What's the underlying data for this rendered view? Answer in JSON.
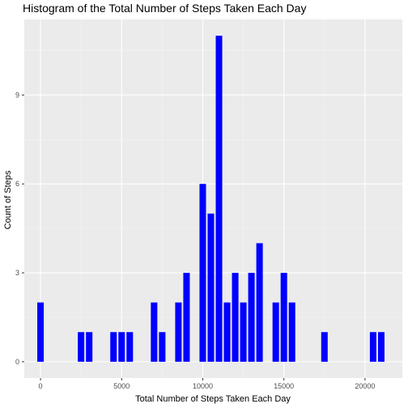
{
  "chart_data": {
    "type": "bar",
    "title": "Histogram of the Total Number of Steps Taken Each Day",
    "xlabel": "Total Number of Steps Taken Each Day",
    "ylabel": "Count of Steps",
    "xlim": [
      -1000,
      22300
    ],
    "ylim": [
      -0.55,
      11.55
    ],
    "binwidth": 500,
    "x_ticks": [
      0,
      5000,
      10000,
      15000,
      20000
    ],
    "x_tick_labels": [
      "0",
      "5000",
      "10000",
      "15000",
      "20000"
    ],
    "y_ticks": [
      0,
      3,
      6,
      9
    ],
    "y_tick_labels": [
      "0",
      "3",
      "6",
      "9"
    ],
    "grid": true,
    "bar_color": "#0000ff",
    "bins": [
      {
        "x": 0,
        "count": 2
      },
      {
        "x": 2500,
        "count": 1
      },
      {
        "x": 3000,
        "count": 1
      },
      {
        "x": 4500,
        "count": 1
      },
      {
        "x": 5000,
        "count": 1
      },
      {
        "x": 5500,
        "count": 1
      },
      {
        "x": 7000,
        "count": 2
      },
      {
        "x": 7500,
        "count": 1
      },
      {
        "x": 8500,
        "count": 2
      },
      {
        "x": 9000,
        "count": 3
      },
      {
        "x": 10000,
        "count": 6
      },
      {
        "x": 10500,
        "count": 5
      },
      {
        "x": 11000,
        "count": 11
      },
      {
        "x": 11500,
        "count": 2
      },
      {
        "x": 12000,
        "count": 3
      },
      {
        "x": 12500,
        "count": 2
      },
      {
        "x": 13000,
        "count": 3
      },
      {
        "x": 13500,
        "count": 4
      },
      {
        "x": 14500,
        "count": 2
      },
      {
        "x": 15000,
        "count": 3
      },
      {
        "x": 15500,
        "count": 2
      },
      {
        "x": 17500,
        "count": 1
      },
      {
        "x": 20500,
        "count": 1
      },
      {
        "x": 21000,
        "count": 1
      }
    ]
  },
  "colors": {
    "panel_background": "#ebebeb",
    "major_grid": "#ffffff",
    "minor_grid": "#f5f5f5",
    "tick": "#333333"
  }
}
